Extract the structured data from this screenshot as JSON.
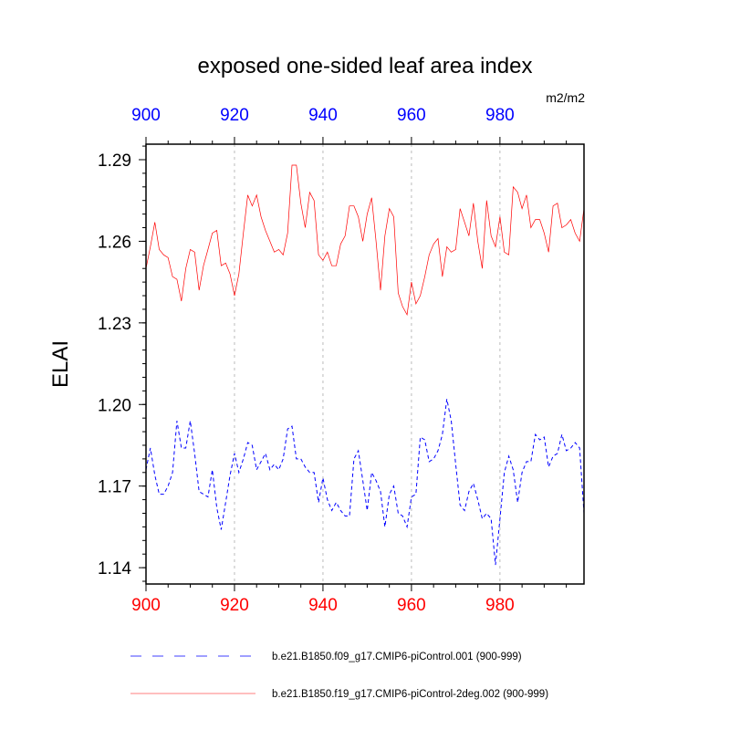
{
  "chart_data": {
    "type": "line",
    "title": "exposed one-sided leaf area index",
    "units": "m2/m2",
    "ylabel": "ELAI",
    "xlabel": "",
    "xlim": [
      900,
      999
    ],
    "ylim": [
      1.134,
      1.2957
    ],
    "xticks": [
      900,
      920,
      940,
      960,
      980
    ],
    "yticks": [
      1.14,
      1.17,
      1.2,
      1.23,
      1.26,
      1.29
    ],
    "ytick_labels": [
      "1.14",
      "1.17",
      "1.20",
      "1.23",
      "1.26",
      "1.29"
    ],
    "xtick_labels": [
      "900",
      "920",
      "940",
      "960",
      "980"
    ],
    "grid": "vertical dotted at major x ticks",
    "legend_placement": "bottom",
    "colors": {
      "top_axis": "#0000ff",
      "bottom_axis": "#ff0000",
      "series_blue": "#0000ff",
      "series_red": "#ff0000"
    },
    "x_start": 900,
    "series": [
      {
        "name": "b.e21.B1850.f09_g17.CMIP6-piControl.001 (900-999)",
        "color": "#0000ff",
        "dash": true,
        "values": [
          1.176,
          1.184,
          1.174,
          1.167,
          1.167,
          1.17,
          1.175,
          1.194,
          1.184,
          1.184,
          1.194,
          1.182,
          1.168,
          1.167,
          1.166,
          1.176,
          1.162,
          1.154,
          1.164,
          1.174,
          1.182,
          1.175,
          1.18,
          1.186,
          1.185,
          1.176,
          1.179,
          1.182,
          1.176,
          1.178,
          1.176,
          1.18,
          1.191,
          1.192,
          1.18,
          1.18,
          1.177,
          1.175,
          1.175,
          1.164,
          1.173,
          1.165,
          1.161,
          1.164,
          1.161,
          1.159,
          1.159,
          1.18,
          1.183,
          1.172,
          1.161,
          1.175,
          1.172,
          1.168,
          1.155,
          1.167,
          1.17,
          1.16,
          1.159,
          1.155,
          1.166,
          1.167,
          1.188,
          1.187,
          1.179,
          1.18,
          1.183,
          1.189,
          1.202,
          1.194,
          1.178,
          1.163,
          1.161,
          1.168,
          1.171,
          1.165,
          1.158,
          1.16,
          1.158,
          1.141,
          1.158,
          1.175,
          1.181,
          1.176,
          1.164,
          1.175,
          1.179,
          1.179,
          1.189,
          1.187,
          1.188,
          1.177,
          1.181,
          1.182,
          1.189,
          1.183,
          1.184,
          1.186,
          1.184,
          1.16
        ]
      },
      {
        "name": "b.e21.B1850.f19_g17.CMIP6-piControl-2deg.002 (900-999)",
        "color": "#ff0000",
        "dash": false,
        "values": [
          1.25,
          1.258,
          1.267,
          1.257,
          1.255,
          1.254,
          1.247,
          1.246,
          1.238,
          1.25,
          1.257,
          1.256,
          1.242,
          1.251,
          1.257,
          1.263,
          1.264,
          1.251,
          1.252,
          1.248,
          1.24,
          1.248,
          1.263,
          1.277,
          1.273,
          1.277,
          1.269,
          1.264,
          1.26,
          1.256,
          1.257,
          1.255,
          1.263,
          1.288,
          1.288,
          1.274,
          1.265,
          1.278,
          1.275,
          1.255,
          1.253,
          1.256,
          1.251,
          1.251,
          1.259,
          1.262,
          1.273,
          1.273,
          1.269,
          1.26,
          1.27,
          1.276,
          1.26,
          1.242,
          1.262,
          1.272,
          1.269,
          1.241,
          1.236,
          1.233,
          1.245,
          1.237,
          1.24,
          1.247,
          1.255,
          1.259,
          1.261,
          1.247,
          1.258,
          1.256,
          1.257,
          1.272,
          1.267,
          1.262,
          1.274,
          1.26,
          1.25,
          1.275,
          1.262,
          1.258,
          1.269,
          1.256,
          1.255,
          1.28,
          1.278,
          1.272,
          1.277,
          1.265,
          1.268,
          1.268,
          1.263,
          1.256,
          1.273,
          1.274,
          1.265,
          1.266,
          1.268,
          1.263,
          1.26,
          1.272
        ]
      }
    ]
  }
}
